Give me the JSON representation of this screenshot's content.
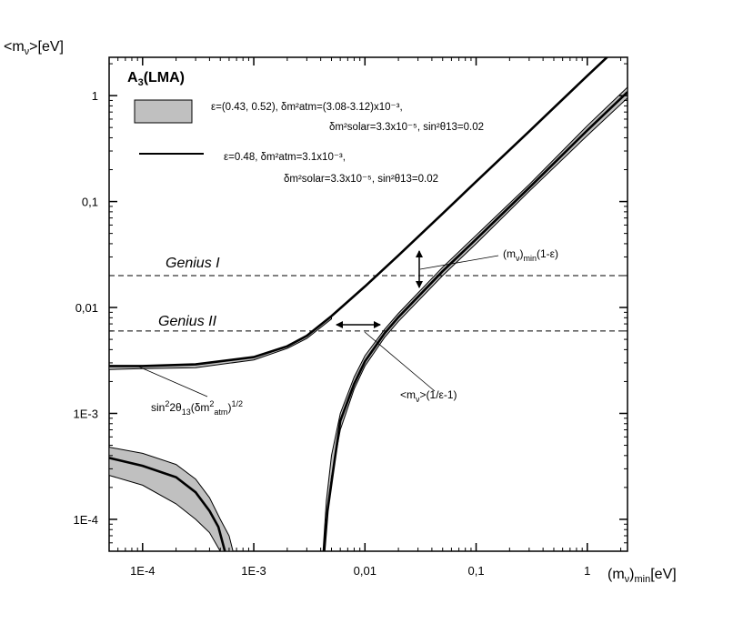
{
  "chart_data": {
    "type": "line",
    "title": "A",
    "title_sub": "3",
    "title_suffix": "(LMA)",
    "xlabel": {
      "pre": "(m",
      "sub1": "ν",
      "mid": ")",
      "sub2": "min",
      "post": "[eV]"
    },
    "ylabel": {
      "pre": "<m",
      "sub": "ν",
      "post": ">[eV]"
    },
    "x_scale": "log",
    "y_scale": "log",
    "xlim": [
      5e-05,
      2.3
    ],
    "ylim": [
      5e-05,
      2.3
    ],
    "x_ticks": [
      {
        "value": 0.0001,
        "label": "1E-4"
      },
      {
        "value": 0.001,
        "label": "1E-3"
      },
      {
        "value": 0.01,
        "label": "0,01"
      },
      {
        "value": 0.1,
        "label": "0,1"
      },
      {
        "value": 1,
        "label": "1"
      }
    ],
    "y_ticks": [
      {
        "value": 0.0001,
        "label": "1E-4"
      },
      {
        "value": 0.001,
        "label": "1E-3"
      },
      {
        "value": 0.01,
        "label": "0,01"
      },
      {
        "value": 0.1,
        "label": "0,1"
      },
      {
        "value": 1,
        "label": "1"
      }
    ],
    "grid": false,
    "legend": {
      "position": "top-left",
      "entries": [
        {
          "kind": "band",
          "line1": "ε=(0.43, 0.52), δm²atm=(3.08-3.12)x10⁻³,",
          "line2": "δm²solar=3.3x10⁻⁵, sin²θ13=0.02"
        },
        {
          "kind": "line",
          "line1": "ε=0.48, δm²atm=3.1x10⁻³,",
          "line2": "δm²solar=3.3x10⁻⁵, sin²θ13=0.02"
        }
      ]
    },
    "reference_lines": [
      {
        "name": "Genius I",
        "y": 0.02
      },
      {
        "name": "Genius II",
        "y": 0.006
      }
    ],
    "annotations": [
      {
        "text_parts": [
          "(m",
          "ν",
          ")",
          "min",
          "(1-ε)"
        ]
      },
      {
        "text_parts": [
          "<m",
          "ν",
          ">(1/ε-1)"
        ]
      },
      {
        "text_parts": [
          "sin",
          "2",
          "2θ",
          "13",
          "(δm",
          "2",
          "atm",
          ")",
          "1/2"
        ]
      }
    ],
    "series": [
      {
        "kind": "line",
        "x": [
          5e-05,
          0.0001,
          0.0003,
          0.001,
          0.002,
          0.003,
          0.005,
          0.01,
          0.02,
          0.05,
          0.1,
          0.3,
          1,
          2.3
        ],
        "y": [
          0.0028,
          0.0028,
          0.0029,
          0.0034,
          0.0043,
          0.0054,
          0.0083,
          0.0158,
          0.031,
          0.077,
          0.154,
          0.46,
          1.54,
          3.5
        ]
      },
      {
        "kind": "band",
        "x": [
          5e-05,
          0.0001,
          0.0003,
          0.001,
          0.002,
          0.003,
          0.005
        ],
        "y_low": [
          0.0026,
          0.00265,
          0.0027,
          0.0032,
          0.0041,
          0.0051,
          0.0078
        ],
        "y_high": [
          0.0028,
          0.0028,
          0.0029,
          0.0034,
          0.0043,
          0.0054,
          0.0083
        ]
      },
      {
        "kind": "band",
        "x": [
          0.0042,
          0.0045,
          0.005,
          0.006,
          0.008,
          0.01,
          0.015,
          0.02,
          0.05,
          0.1,
          0.3,
          1,
          2.3
        ],
        "y_low": [
          5e-05,
          0.0001,
          0.00025,
          0.0007,
          0.0017,
          0.0028,
          0.0052,
          0.0074,
          0.02,
          0.04,
          0.125,
          0.42,
          0.95
        ],
        "y_high": [
          5e-05,
          0.00015,
          0.0004,
          0.001,
          0.0022,
          0.0035,
          0.0062,
          0.0088,
          0.024,
          0.048,
          0.145,
          0.52,
          1.2
        ]
      },
      {
        "kind": "line",
        "x": [
          0.0043,
          0.0046,
          0.0052,
          0.006,
          0.008,
          0.01,
          0.015,
          0.02,
          0.05,
          0.1,
          0.3,
          1,
          2.3
        ],
        "y": [
          5e-05,
          0.00012,
          0.0003,
          0.00085,
          0.0019,
          0.0031,
          0.0057,
          0.0081,
          0.022,
          0.044,
          0.135,
          0.47,
          1.08
        ]
      },
      {
        "kind": "band",
        "x": [
          5e-05,
          0.0001,
          0.0002,
          0.0003,
          0.0004,
          0.0005,
          0.0006,
          0.00065
        ],
        "y_low": [
          0.00026,
          0.00021,
          0.00014,
          0.0001,
          7.5e-05,
          5e-05,
          5e-05,
          5e-05
        ],
        "y_high": [
          0.00048,
          0.00042,
          0.00033,
          0.00024,
          0.00016,
          0.0001,
          7e-05,
          5e-05
        ]
      },
      {
        "kind": "line",
        "x": [
          5e-05,
          0.0001,
          0.0002,
          0.0003,
          0.0004,
          0.00048,
          0.00055
        ],
        "y": [
          0.00038,
          0.00032,
          0.00025,
          0.00018,
          0.00012,
          8.5e-05,
          5e-05
        ]
      }
    ]
  }
}
